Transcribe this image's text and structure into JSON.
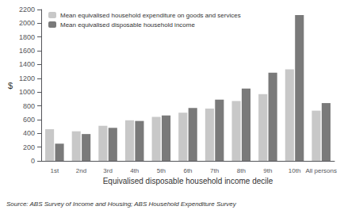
{
  "chart_data": {
    "type": "bar",
    "categories": [
      "1st",
      "2nd",
      "3rd",
      "4th",
      "5th",
      "6th",
      "7th",
      "8th",
      "9th",
      "10th",
      "All persons"
    ],
    "series": [
      {
        "name": "Mean equivalised household expenditure on goods and services",
        "color": "#c8c8c8",
        "values": [
          460,
          430,
          510,
          590,
          640,
          700,
          760,
          870,
          970,
          1330,
          730
        ]
      },
      {
        "name": "Mean equivalised disposable household income",
        "color": "#7a7a7a",
        "values": [
          250,
          390,
          480,
          580,
          660,
          770,
          890,
          1050,
          1280,
          2120,
          840
        ]
      }
    ],
    "xlabel": "Equivalised disposable household income decile",
    "ylabel": "$",
    "ylim": [
      0,
      2200
    ],
    "yticks": [
      0,
      200,
      400,
      600,
      800,
      1000,
      1200,
      1400,
      1600,
      1800,
      2000,
      2200
    ],
    "annotations": [
      "Source: ABS Survey of Income and Housing; ABS Household Expenditure Survey"
    ],
    "legend": "upper left",
    "grid": false
  }
}
